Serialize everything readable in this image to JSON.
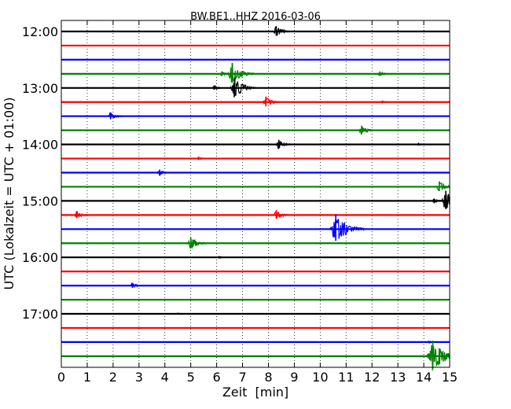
{
  "chart_data": {
    "type": "line",
    "title": "BW.BE1..HHZ 2016-03-06",
    "xlabel": "Zeit  [min]",
    "ylabel": "UTC (Lokalzeit = UTC + 01:00)",
    "xlim": [
      0,
      15
    ],
    "x_ticks": [
      0,
      1,
      2,
      3,
      4,
      5,
      6,
      7,
      8,
      9,
      10,
      11,
      12,
      13,
      14,
      15
    ],
    "y_tick_labels": [
      "12:00",
      "13:00",
      "14:00",
      "15:00",
      "16:00",
      "17:00"
    ],
    "y_ticks_at_trace": [
      0,
      4,
      8,
      12,
      16,
      20
    ],
    "grid": true,
    "colors": [
      "#000000",
      "#ff0000",
      "#0000ff",
      "#008000"
    ],
    "traces": [
      {
        "start": "12:00",
        "color": "#000000",
        "events": [
          {
            "t": 8.3,
            "amp": 0.7
          }
        ]
      },
      {
        "start": "12:15",
        "color": "#ff0000",
        "events": []
      },
      {
        "start": "12:30",
        "color": "#0000ff",
        "events": []
      },
      {
        "start": "12:45",
        "color": "#008000",
        "events": [
          {
            "t": 6.6,
            "amp": 1.4
          },
          {
            "t": 6.2,
            "amp": 0.3
          },
          {
            "t": 12.3,
            "amp": 0.3
          }
        ]
      },
      {
        "start": "13:00",
        "color": "#000000",
        "events": [
          {
            "t": 6.7,
            "amp": 1.3
          },
          {
            "t": 5.9,
            "amp": 0.3
          }
        ]
      },
      {
        "start": "13:15",
        "color": "#ff0000",
        "events": [
          {
            "t": 7.9,
            "amp": 0.7
          },
          {
            "t": 12.4,
            "amp": 0.15
          }
        ]
      },
      {
        "start": "13:30",
        "color": "#0000ff",
        "events": [
          {
            "t": 1.9,
            "amp": 0.5
          }
        ]
      },
      {
        "start": "13:45",
        "color": "#008000",
        "events": [
          {
            "t": 11.6,
            "amp": 0.6
          }
        ]
      },
      {
        "start": "14:00",
        "color": "#000000",
        "events": [
          {
            "t": 8.4,
            "amp": 0.6
          },
          {
            "t": 13.8,
            "amp": 0.15
          }
        ]
      },
      {
        "start": "14:15",
        "color": "#ff0000",
        "events": [
          {
            "t": 5.3,
            "amp": 0.2
          }
        ]
      },
      {
        "start": "14:30",
        "color": "#0000ff",
        "events": [
          {
            "t": 3.8,
            "amp": 0.4
          }
        ]
      },
      {
        "start": "14:45",
        "color": "#008000",
        "events": [
          {
            "t": 14.6,
            "amp": 0.7
          }
        ]
      },
      {
        "start": "15:00",
        "color": "#000000",
        "events": [
          {
            "t": 14.85,
            "amp": 1.3
          },
          {
            "t": 14.4,
            "amp": 0.3
          }
        ]
      },
      {
        "start": "15:15",
        "color": "#ff0000",
        "events": [
          {
            "t": 0.6,
            "amp": 0.5
          },
          {
            "t": 8.3,
            "amp": 0.6
          }
        ]
      },
      {
        "start": "15:30",
        "color": "#0000ff",
        "events": [
          {
            "t": 10.6,
            "amp": 1.9
          }
        ]
      },
      {
        "start": "15:45",
        "color": "#008000",
        "events": [
          {
            "t": 5.0,
            "amp": 0.8
          }
        ]
      },
      {
        "start": "16:00",
        "color": "#000000",
        "events": [
          {
            "t": 6.1,
            "amp": 0.15
          }
        ]
      },
      {
        "start": "16:15",
        "color": "#ff0000",
        "events": []
      },
      {
        "start": "16:30",
        "color": "#0000ff",
        "events": [
          {
            "t": 2.75,
            "amp": 0.35
          }
        ]
      },
      {
        "start": "16:45",
        "color": "#008000",
        "events": []
      },
      {
        "start": "17:00",
        "color": "#000000",
        "events": [
          {
            "t": 4.5,
            "amp": 0.1
          }
        ]
      },
      {
        "start": "17:15",
        "color": "#ff0000",
        "events": []
      },
      {
        "start": "17:30",
        "color": "#0000ff",
        "events": [
          {
            "t": 14.2,
            "amp": 0.15
          }
        ]
      },
      {
        "start": "17:45",
        "color": "#008000",
        "events": [
          {
            "t": 14.35,
            "amp": 2.0
          }
        ]
      }
    ]
  }
}
